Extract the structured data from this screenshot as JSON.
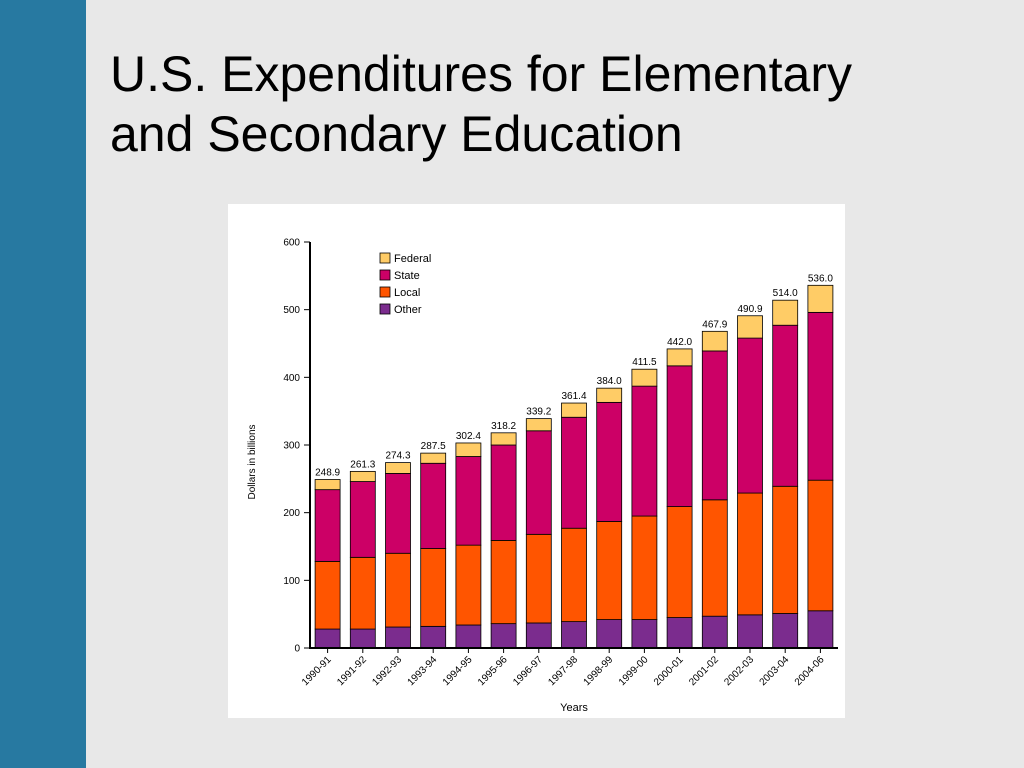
{
  "slide": {
    "title_line1": "U.S. Expenditures for Elementary",
    "title_line2": "and Secondary Education"
  },
  "chart_data": {
    "type": "bar",
    "stacked": true,
    "title": "",
    "xlabel": "Years",
    "ylabel": "Dollars in billions",
    "ylim": [
      0,
      600
    ],
    "yticks": [
      0,
      100,
      200,
      300,
      400,
      500,
      600
    ],
    "legend_position": "top-left",
    "categories": [
      "1990-91",
      "1991-92",
      "1992-93",
      "1993-94",
      "1994-95",
      "1995-96",
      "1996-97",
      "1997-98",
      "1998-99",
      "1999-00",
      "2000-01",
      "2001-02",
      "2002-03",
      "2003-04",
      "2004-06"
    ],
    "totals": [
      "248.9",
      "261.3",
      "274.3",
      "287.5",
      "302.4",
      "318.2",
      "339.2",
      "361.4",
      "384.0",
      "411.5",
      "442.0",
      "467.9",
      "490.9",
      "514.0",
      "536.0"
    ],
    "series": [
      {
        "name": "Other",
        "color": "#7b2c8e",
        "values": [
          28,
          28,
          31,
          32,
          34,
          36,
          37,
          39,
          42,
          42,
          45,
          47,
          49,
          51,
          55
        ]
      },
      {
        "name": "Local",
        "color": "#ff5500",
        "values": [
          100,
          106,
          109,
          115,
          118,
          123,
          131,
          138,
          145,
          153,
          164,
          172,
          180,
          188,
          193
        ]
      },
      {
        "name": "State",
        "color": "#cc0066",
        "values": [
          106,
          112,
          118,
          126,
          131,
          141,
          153,
          164,
          176,
          192,
          208,
          220,
          229,
          238,
          248
        ]
      },
      {
        "name": "Federal",
        "color": "#ffcc66",
        "values": [
          15,
          15,
          16,
          15,
          20,
          18,
          18,
          21,
          21,
          25,
          25,
          29,
          33,
          37,
          40
        ]
      }
    ],
    "legend_order": [
      "Federal",
      "State",
      "Local",
      "Other"
    ]
  }
}
